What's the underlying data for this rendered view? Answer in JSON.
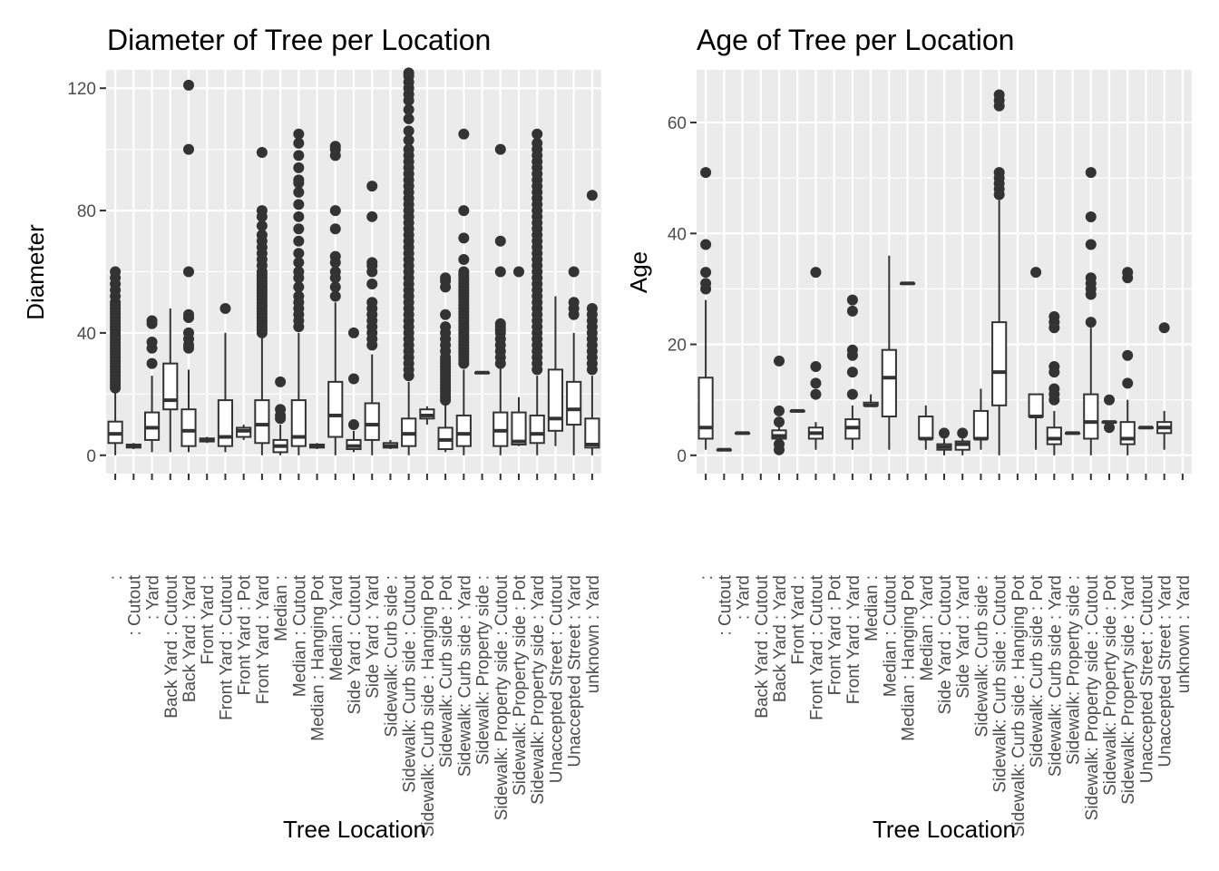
{
  "chart_data": [
    {
      "type": "box",
      "title": "Diameter of Tree per Location",
      "xlabel": "Tree Location",
      "ylabel": "Diameter",
      "ylim": [
        -6,
        126
      ],
      "yticks": [
        0,
        40,
        80,
        120
      ],
      "grid": true,
      "colors": {
        "panel": "#ebebeb",
        "grid": "#ffffff",
        "box": "#333333",
        "fill": "#ffffff",
        "outlier": "#333333"
      },
      "categories": [
        ": ",
        ": Cutout",
        ": Yard",
        "Back Yard : Cutout",
        "Back Yard : Yard",
        "Front Yard : ",
        "Front Yard : Cutout",
        "Front Yard : Pot",
        "Front Yard : Yard",
        "Median : ",
        "Median : Cutout",
        "Median : Hanging Pot",
        "Median : Yard",
        "Side Yard : Cutout",
        "Side Yard : Yard",
        "Sidewalk: Curb side : ",
        "Sidewalk: Curb side : Cutout",
        "Sidewalk: Curb side : Hanging Pot",
        "Sidewalk: Curb side : Pot",
        "Sidewalk: Curb side : Yard",
        "Sidewalk: Property side : ",
        "Sidewalk: Property side : Cutout",
        "Sidewalk: Property side : Pot",
        "Sidewalk: Property side : Yard",
        "Unaccepted Street : Cutout",
        "Unaccepted Street : Yard",
        "unknown : Yard"
      ],
      "boxes": [
        {
          "index": 0,
          "min": 0,
          "q1": 4,
          "median": 7,
          "q3": 11,
          "max": 21,
          "outliers": [
            22,
            23,
            24,
            25,
            26,
            27,
            28,
            29,
            30,
            31,
            32,
            33,
            34,
            35,
            36,
            37,
            38,
            39,
            40,
            41,
            42,
            43,
            44,
            45,
            46,
            47,
            48,
            49,
            50,
            52,
            54,
            56,
            58,
            60
          ]
        },
        {
          "index": 1,
          "min": 2,
          "q1": 2.5,
          "median": 3,
          "q3": 3.5,
          "max": 4,
          "outliers": []
        },
        {
          "index": 2,
          "min": 1,
          "q1": 5,
          "median": 9,
          "q3": 14,
          "max": 26,
          "outliers": [
            30,
            35,
            37,
            43,
            44
          ]
        },
        {
          "index": 3,
          "min": 1,
          "q1": 15,
          "median": 18,
          "q3": 30,
          "max": 48,
          "outliers": []
        },
        {
          "index": 4,
          "min": 1,
          "q1": 3,
          "median": 8,
          "q3": 15,
          "max": 28,
          "outliers": [
            35,
            36,
            38,
            40,
            45,
            46,
            60,
            100,
            121
          ]
        },
        {
          "index": 5,
          "min": 4,
          "q1": 4.5,
          "median": 5,
          "q3": 5.5,
          "max": 6,
          "outliers": []
        },
        {
          "index": 6,
          "min": 1,
          "q1": 3,
          "median": 6,
          "q3": 18,
          "max": 40,
          "outliers": [
            48
          ]
        },
        {
          "index": 7,
          "min": 5,
          "q1": 6,
          "median": 8,
          "q3": 9,
          "max": 10,
          "outliers": []
        },
        {
          "index": 8,
          "min": 0,
          "q1": 4,
          "median": 10,
          "q3": 18,
          "max": 39,
          "outliers": [
            40,
            41,
            42,
            43,
            44,
            45,
            46,
            47,
            48,
            49,
            50,
            51,
            52,
            53,
            54,
            55,
            56,
            57,
            58,
            59,
            60,
            62,
            64,
            66,
            68,
            70,
            72,
            75,
            78,
            80,
            99
          ]
        },
        {
          "index": 9,
          "min": 0,
          "q1": 1,
          "median": 3,
          "q3": 5,
          "max": 10,
          "outliers": [
            12,
            13,
            15,
            24
          ]
        },
        {
          "index": 10,
          "min": 0,
          "q1": 3,
          "median": 6,
          "q3": 18,
          "max": 40,
          "outliers": [
            42,
            44,
            46,
            48,
            50,
            52,
            55,
            58,
            60,
            63,
            66,
            70,
            74,
            78,
            82,
            86,
            89,
            90,
            94,
            98,
            102,
            105
          ]
        },
        {
          "index": 11,
          "min": 2,
          "q1": 2.5,
          "median": 3,
          "q3": 3.5,
          "max": 4,
          "outliers": []
        },
        {
          "index": 12,
          "min": 0,
          "q1": 6,
          "median": 13,
          "q3": 24,
          "max": 50,
          "outliers": [
            52,
            55,
            58,
            60,
            63,
            65,
            74,
            80,
            98,
            100,
            101
          ]
        },
        {
          "index": 13,
          "min": 1,
          "q1": 2,
          "median": 3,
          "q3": 5,
          "max": 8,
          "outliers": [
            10,
            25,
            40
          ]
        },
        {
          "index": 14,
          "min": 0,
          "q1": 5,
          "median": 10,
          "q3": 17,
          "max": 33,
          "outliers": [
            36,
            38,
            40,
            42,
            44,
            46,
            48,
            50,
            56,
            60,
            62,
            63,
            78,
            88
          ]
        },
        {
          "index": 15,
          "min": 2,
          "q1": 2.5,
          "median": 3,
          "q3": 4,
          "max": 5,
          "outliers": []
        },
        {
          "index": 16,
          "min": 0,
          "q1": 3,
          "median": 7,
          "q3": 12,
          "max": 24,
          "outliers": [
            26,
            28,
            30,
            32,
            34,
            36,
            38,
            40,
            42,
            44,
            46,
            48,
            50,
            52,
            54,
            56,
            58,
            60,
            62,
            64,
            66,
            68,
            70,
            72,
            74,
            76,
            78,
            80,
            82,
            84,
            86,
            88,
            90,
            92,
            94,
            96,
            98,
            100,
            103,
            106,
            110,
            113,
            116,
            118,
            120,
            122,
            124,
            125
          ]
        },
        {
          "index": 17,
          "min": 10,
          "q1": 12,
          "median": 13,
          "q3": 15,
          "max": 16,
          "outliers": []
        },
        {
          "index": 18,
          "min": 1,
          "q1": 2,
          "median": 5,
          "q3": 9,
          "max": 17,
          "outliers": [
            18,
            19,
            20,
            21,
            22,
            23,
            24,
            25,
            26,
            27,
            28,
            29,
            30,
            31,
            32,
            34,
            36,
            38,
            40,
            42,
            46,
            55,
            57,
            58
          ]
        },
        {
          "index": 19,
          "min": 0,
          "q1": 3,
          "median": 7,
          "q3": 13,
          "max": 28,
          "outliers": [
            30,
            31,
            32,
            33,
            34,
            35,
            36,
            37,
            38,
            39,
            40,
            41,
            42,
            43,
            44,
            45,
            46,
            47,
            48,
            49,
            50,
            51,
            52,
            53,
            54,
            55,
            56,
            57,
            58,
            59,
            60,
            64,
            71,
            80,
            105
          ]
        },
        {
          "index": 20,
          "min": 27,
          "q1": 27,
          "median": 27,
          "q3": 27,
          "max": 27,
          "outliers": []
        },
        {
          "index": 21,
          "min": 0,
          "q1": 3,
          "median": 8,
          "q3": 14,
          "max": 29,
          "outliers": [
            30,
            32,
            34,
            36,
            38,
            40,
            41,
            42,
            43,
            60,
            70,
            100
          ]
        },
        {
          "index": 22,
          "min": 3,
          "q1": 3.5,
          "median": 4.5,
          "q3": 14,
          "max": 19,
          "outliers": [
            60
          ]
        },
        {
          "index": 23,
          "min": 0,
          "q1": 4,
          "median": 7,
          "q3": 13,
          "max": 26,
          "outliers": [
            28,
            30,
            32,
            34,
            36,
            38,
            40,
            42,
            44,
            46,
            48,
            50,
            52,
            54,
            56,
            58,
            60,
            62,
            64,
            66,
            68,
            70,
            72,
            74,
            76,
            78,
            80,
            82,
            84,
            86,
            88,
            90,
            92,
            94,
            96,
            98,
            100,
            102,
            105
          ]
        },
        {
          "index": 24,
          "min": 3,
          "q1": 8,
          "median": 12,
          "q3": 28,
          "max": 52,
          "outliers": []
        },
        {
          "index": 25,
          "min": 0,
          "q1": 10,
          "median": 15,
          "q3": 24,
          "max": 40,
          "outliers": [
            46,
            48,
            50,
            60
          ]
        },
        {
          "index": 26,
          "min": 0,
          "q1": 2.5,
          "median": 3.5,
          "q3": 12,
          "max": 26,
          "outliers": [
            28,
            30,
            32,
            34,
            36,
            38,
            40,
            42,
            44,
            46,
            48,
            85
          ]
        }
      ]
    },
    {
      "type": "box",
      "title": "Age of Tree per Location",
      "xlabel": "Tree Location",
      "ylabel": "Age",
      "ylim": [
        -3.3,
        69.5
      ],
      "yticks": [
        0,
        20,
        40,
        60
      ],
      "grid": true,
      "colors": {
        "panel": "#ebebeb",
        "grid": "#ffffff",
        "box": "#333333",
        "fill": "#ffffff",
        "outlier": "#333333"
      },
      "categories": [
        ": ",
        ": Cutout",
        ": Yard",
        "Back Yard : Cutout",
        "Back Yard : Yard",
        "Front Yard : ",
        "Front Yard : Cutout",
        "Front Yard : Pot",
        "Front Yard : Yard",
        "Median : ",
        "Median : Cutout",
        "Median : Hanging Pot",
        "Median : Yard",
        "Side Yard : Cutout",
        "Side Yard : Yard",
        "Sidewalk: Curb side : ",
        "Sidewalk: Curb side : Cutout",
        "Sidewalk: Curb side : Hanging Pot",
        "Sidewalk: Curb side : Pot",
        "Sidewalk: Curb side : Yard",
        "Sidewalk: Property side : ",
        "Sidewalk: Property side : Cutout",
        "Sidewalk: Property side : Pot",
        "Sidewalk: Property side : Yard",
        "Unaccepted Street : Cutout",
        "Unaccepted Street : Yard",
        "unknown : Yard"
      ],
      "boxes": [
        {
          "index": 0,
          "min": 1,
          "q1": 3,
          "median": 5,
          "q3": 14,
          "max": 28,
          "outliers": [
            30,
            31,
            33,
            38,
            51
          ]
        },
        {
          "index": 1,
          "min": 1,
          "q1": 1,
          "median": 1,
          "q3": 1,
          "max": 1,
          "outliers": []
        },
        {
          "index": 2,
          "min": 4,
          "q1": 4,
          "median": 4,
          "q3": 4,
          "max": 4,
          "outliers": []
        },
        {
          "index": 4,
          "min": 1,
          "q1": 3,
          "median": 3.5,
          "q3": 4.5,
          "max": 6,
          "outliers": [
            1,
            2,
            6,
            8,
            17
          ]
        },
        {
          "index": 5,
          "min": 8,
          "q1": 8,
          "median": 8,
          "q3": 8,
          "max": 8,
          "outliers": []
        },
        {
          "index": 6,
          "min": 1,
          "q1": 3,
          "median": 4,
          "q3": 5,
          "max": 6,
          "outliers": [
            11,
            13,
            16,
            33
          ]
        },
        {
          "index": 8,
          "min": 1,
          "q1": 3,
          "median": 5,
          "q3": 6.5,
          "max": 9,
          "outliers": [
            11,
            15,
            18,
            19,
            26,
            28
          ]
        },
        {
          "index": 9,
          "min": 9,
          "q1": 9,
          "median": 9,
          "q3": 9.5,
          "max": 11,
          "outliers": []
        },
        {
          "index": 10,
          "min": 1,
          "q1": 7,
          "median": 14,
          "q3": 19,
          "max": 36,
          "outliers": []
        },
        {
          "index": 11,
          "min": 31,
          "q1": 31,
          "median": 31,
          "q3": 31,
          "max": 31,
          "outliers": []
        },
        {
          "index": 12,
          "min": 1,
          "q1": 3,
          "median": 3,
          "q3": 7,
          "max": 9,
          "outliers": []
        },
        {
          "index": 13,
          "min": 0,
          "q1": 1,
          "median": 1.5,
          "q3": 2,
          "max": 3,
          "outliers": [
            4
          ]
        },
        {
          "index": 14,
          "min": 0,
          "q1": 1,
          "median": 2,
          "q3": 2.5,
          "max": 3,
          "outliers": [
            4
          ]
        },
        {
          "index": 15,
          "min": 1,
          "q1": 3,
          "median": 3,
          "q3": 8,
          "max": 12,
          "outliers": []
        },
        {
          "index": 16,
          "min": 0,
          "q1": 9,
          "median": 15,
          "q3": 24,
          "max": 46,
          "outliers": [
            47,
            48,
            49,
            50,
            51,
            63,
            64,
            65
          ]
        },
        {
          "index": 18,
          "min": 1,
          "q1": 7,
          "median": 7,
          "q3": 11,
          "max": 11,
          "outliers": [
            33
          ]
        },
        {
          "index": 19,
          "min": 0,
          "q1": 2,
          "median": 3,
          "q3": 5,
          "max": 8,
          "outliers": [
            10,
            11,
            12,
            15,
            16,
            23,
            24,
            25
          ]
        },
        {
          "index": 20,
          "min": 4,
          "q1": 4,
          "median": 4,
          "q3": 4,
          "max": 4,
          "outliers": []
        },
        {
          "index": 21,
          "min": 0,
          "q1": 3,
          "median": 6,
          "q3": 11,
          "max": 23,
          "outliers": [
            24,
            29,
            30,
            31,
            32,
            38,
            43,
            51
          ]
        },
        {
          "index": 22,
          "min": 5,
          "q1": 6,
          "median": 6,
          "q3": 6,
          "max": 6,
          "outliers": [
            5,
            10
          ]
        },
        {
          "index": 23,
          "min": 0,
          "q1": 2,
          "median": 3,
          "q3": 6,
          "max": 10,
          "outliers": [
            13,
            18,
            32,
            33
          ]
        },
        {
          "index": 24,
          "min": 5,
          "q1": 5,
          "median": 5,
          "q3": 5,
          "max": 5,
          "outliers": []
        },
        {
          "index": 25,
          "min": 1,
          "q1": 4,
          "median": 5,
          "q3": 6,
          "max": 8,
          "outliers": [
            23
          ]
        }
      ]
    }
  ]
}
